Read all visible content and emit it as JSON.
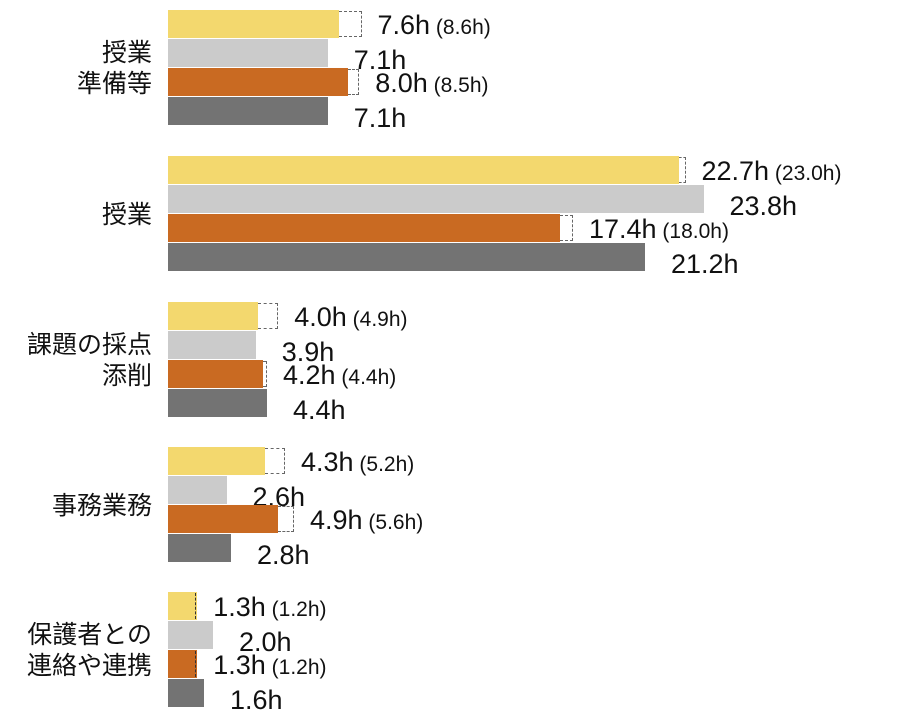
{
  "chart_data": {
    "type": "bar",
    "orientation": "horizontal",
    "title": "",
    "xlabel": "",
    "ylabel": "",
    "unit": "h",
    "grid": false,
    "legend": null,
    "categories": [
      "授業準備等",
      "授業",
      "課題の採点添削",
      "事務業務",
      "保護者との連絡や連携"
    ],
    "category_labels": [
      [
        "授業",
        "準備等"
      ],
      [
        "授業"
      ],
      [
        "課題の採点",
        "添削"
      ],
      [
        "事務業務"
      ],
      [
        "保護者との",
        "連絡や連携"
      ]
    ],
    "series": [
      {
        "name": "series-1 (yellow)",
        "color": "#F3D86E",
        "values": [
          7.6,
          22.7,
          4.0,
          4.3,
          1.3
        ],
        "reference_values": [
          8.6,
          23.0,
          4.9,
          5.2,
          1.2
        ]
      },
      {
        "name": "series-2 (light gray)",
        "color": "#CBCBCB",
        "values": [
          7.1,
          23.8,
          3.9,
          2.6,
          2.0
        ]
      },
      {
        "name": "series-3 (orange)",
        "color": "#C96A22",
        "values": [
          8.0,
          17.4,
          4.2,
          4.9,
          1.3
        ],
        "reference_values": [
          8.5,
          18.0,
          4.4,
          5.6,
          1.2
        ]
      },
      {
        "name": "series-4 (dark gray)",
        "color": "#737373",
        "values": [
          7.1,
          21.2,
          4.4,
          2.8,
          1.6
        ]
      }
    ],
    "labels": [
      [
        "7.6h",
        "(8.6h)"
      ],
      [
        "7.1h",
        ""
      ],
      [
        "8.0h",
        "(8.5h)"
      ],
      [
        "7.1h",
        ""
      ],
      [
        "22.7h",
        "(23.0h)"
      ],
      [
        "23.8h",
        ""
      ],
      [
        "17.4h",
        "(18.0h)"
      ],
      [
        "21.2h",
        ""
      ],
      [
        "4.0h",
        "(4.9h)"
      ],
      [
        "3.9h",
        ""
      ],
      [
        "4.2h",
        "(4.4h)"
      ],
      [
        "4.4h",
        ""
      ],
      [
        "4.3h",
        "(5.2h)"
      ],
      [
        "2.6h",
        ""
      ],
      [
        "4.9h",
        "(5.6h)"
      ],
      [
        "2.8h",
        ""
      ],
      [
        "1.3h",
        "(1.2h)"
      ],
      [
        "2.0h",
        ""
      ],
      [
        "1.3h",
        "(1.2h)"
      ],
      [
        "1.6h",
        ""
      ]
    ],
    "xlim": [
      0,
      24
    ],
    "notes": "Dashed outlines show the parenthesized reference values for yellow and orange series."
  }
}
